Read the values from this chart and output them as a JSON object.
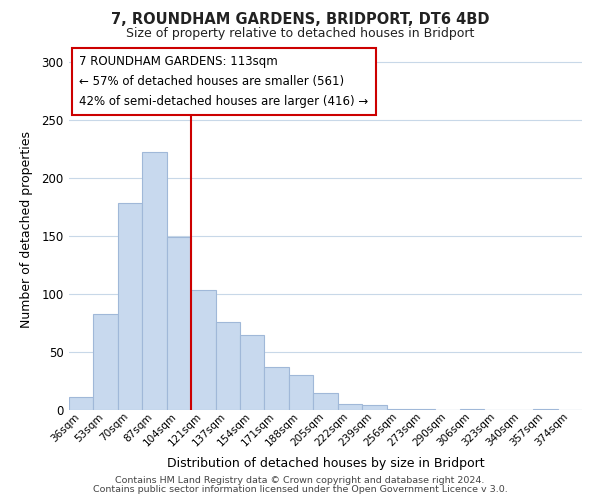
{
  "title": "7, ROUNDHAM GARDENS, BRIDPORT, DT6 4BD",
  "subtitle": "Size of property relative to detached houses in Bridport",
  "xlabel": "Distribution of detached houses by size in Bridport",
  "ylabel": "Number of detached properties",
  "categories": [
    "36sqm",
    "53sqm",
    "70sqm",
    "87sqm",
    "104sqm",
    "121sqm",
    "137sqm",
    "154sqm",
    "171sqm",
    "188sqm",
    "205sqm",
    "222sqm",
    "239sqm",
    "256sqm",
    "273sqm",
    "290sqm",
    "306sqm",
    "323sqm",
    "340sqm",
    "357sqm",
    "374sqm"
  ],
  "values": [
    11,
    83,
    178,
    222,
    149,
    103,
    76,
    65,
    37,
    30,
    15,
    5,
    4,
    1,
    1,
    0,
    1,
    0,
    0,
    1,
    0
  ],
  "bar_color": "#c8d9ee",
  "bar_edge_color": "#a0b8d8",
  "vline_x": 5,
  "vline_color": "#cc0000",
  "annotation_title": "7 ROUNDHAM GARDENS: 113sqm",
  "annotation_line1": "← 57% of detached houses are smaller (561)",
  "annotation_line2": "42% of semi-detached houses are larger (416) →",
  "box_edge_color": "#cc0000",
  "ylim": [
    0,
    310
  ],
  "yticks": [
    0,
    50,
    100,
    150,
    200,
    250,
    300
  ],
  "footer1": "Contains HM Land Registry data © Crown copyright and database right 2024.",
  "footer2": "Contains public sector information licensed under the Open Government Licence v 3.0.",
  "background_color": "#ffffff",
  "grid_color": "#c8d8e8"
}
